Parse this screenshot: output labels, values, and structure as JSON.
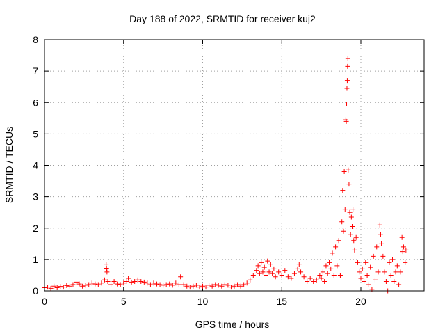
{
  "chart_data": {
    "type": "scatter",
    "title": "Day 188 of 2022, SRMTID for receiver kuj2",
    "xlabel": "GPS time / hours",
    "ylabel": "SRMTID / TECUs",
    "xlim": [
      0,
      24
    ],
    "ylim": [
      0,
      8
    ],
    "xticks": [
      0,
      5,
      10,
      15,
      20
    ],
    "yticks": [
      0,
      1,
      2,
      3,
      4,
      5,
      6,
      7,
      8
    ],
    "grid": true,
    "marker": "+",
    "series": [
      {
        "name": "SRMTID",
        "color": "#ff0000",
        "points": [
          [
            0.0,
            0.1
          ],
          [
            0.2,
            0.12
          ],
          [
            0.4,
            0.08
          ],
          [
            0.6,
            0.15
          ],
          [
            0.8,
            0.1
          ],
          [
            1.0,
            0.14
          ],
          [
            1.2,
            0.12
          ],
          [
            1.4,
            0.17
          ],
          [
            1.6,
            0.15
          ],
          [
            1.8,
            0.2
          ],
          [
            2.0,
            0.28
          ],
          [
            2.2,
            0.22
          ],
          [
            2.4,
            0.15
          ],
          [
            2.6,
            0.18
          ],
          [
            2.8,
            0.2
          ],
          [
            3.0,
            0.25
          ],
          [
            3.2,
            0.22
          ],
          [
            3.4,
            0.2
          ],
          [
            3.6,
            0.25
          ],
          [
            3.8,
            0.35
          ],
          [
            3.9,
            0.85
          ],
          [
            3.92,
            0.72
          ],
          [
            3.95,
            0.6
          ],
          [
            4.0,
            0.3
          ],
          [
            4.2,
            0.2
          ],
          [
            4.4,
            0.3
          ],
          [
            4.6,
            0.22
          ],
          [
            4.8,
            0.2
          ],
          [
            5.0,
            0.25
          ],
          [
            5.2,
            0.3
          ],
          [
            5.3,
            0.4
          ],
          [
            5.5,
            0.28
          ],
          [
            5.7,
            0.3
          ],
          [
            5.9,
            0.35
          ],
          [
            6.1,
            0.3
          ],
          [
            6.3,
            0.28
          ],
          [
            6.5,
            0.25
          ],
          [
            6.7,
            0.2
          ],
          [
            6.9,
            0.25
          ],
          [
            7.1,
            0.22
          ],
          [
            7.3,
            0.2
          ],
          [
            7.5,
            0.18
          ],
          [
            7.7,
            0.2
          ],
          [
            7.9,
            0.22
          ],
          [
            8.1,
            0.18
          ],
          [
            8.3,
            0.25
          ],
          [
            8.5,
            0.2
          ],
          [
            8.6,
            0.45
          ],
          [
            8.8,
            0.2
          ],
          [
            9.0,
            0.15
          ],
          [
            9.2,
            0.12
          ],
          [
            9.4,
            0.15
          ],
          [
            9.6,
            0.18
          ],
          [
            9.8,
            0.12
          ],
          [
            10.0,
            0.15
          ],
          [
            10.2,
            0.12
          ],
          [
            10.4,
            0.18
          ],
          [
            10.6,
            0.15
          ],
          [
            10.8,
            0.2
          ],
          [
            11.0,
            0.18
          ],
          [
            11.2,
            0.15
          ],
          [
            11.4,
            0.2
          ],
          [
            11.6,
            0.18
          ],
          [
            11.8,
            0.12
          ],
          [
            12.0,
            0.15
          ],
          [
            12.2,
            0.2
          ],
          [
            12.4,
            0.15
          ],
          [
            12.6,
            0.2
          ],
          [
            12.8,
            0.25
          ],
          [
            13.0,
            0.35
          ],
          [
            13.2,
            0.5
          ],
          [
            13.4,
            0.65
          ],
          [
            13.5,
            0.8
          ],
          [
            13.6,
            0.55
          ],
          [
            13.7,
            0.9
          ],
          [
            13.8,
            0.6
          ],
          [
            13.9,
            0.75
          ],
          [
            14.0,
            0.5
          ],
          [
            14.1,
            0.95
          ],
          [
            14.2,
            0.6
          ],
          [
            14.3,
            0.85
          ],
          [
            14.4,
            0.55
          ],
          [
            14.5,
            0.7
          ],
          [
            14.6,
            0.45
          ],
          [
            14.8,
            0.6
          ],
          [
            15.0,
            0.5
          ],
          [
            15.2,
            0.65
          ],
          [
            15.4,
            0.45
          ],
          [
            15.6,
            0.4
          ],
          [
            15.8,
            0.55
          ],
          [
            16.0,
            0.7
          ],
          [
            16.1,
            0.85
          ],
          [
            16.2,
            0.6
          ],
          [
            16.4,
            0.45
          ],
          [
            16.6,
            0.3
          ],
          [
            16.8,
            0.4
          ],
          [
            17.0,
            0.3
          ],
          [
            17.2,
            0.35
          ],
          [
            17.4,
            0.5
          ],
          [
            17.5,
            0.4
          ],
          [
            17.6,
            0.6
          ],
          [
            17.7,
            0.3
          ],
          [
            17.8,
            0.8
          ],
          [
            17.9,
            0.55
          ],
          [
            18.0,
            0.9
          ],
          [
            18.1,
            0.7
          ],
          [
            18.2,
            1.2
          ],
          [
            18.3,
            0.5
          ],
          [
            18.4,
            1.4
          ],
          [
            18.5,
            0.8
          ],
          [
            18.6,
            1.6
          ],
          [
            18.7,
            0.5
          ],
          [
            18.8,
            2.2
          ],
          [
            18.85,
            3.2
          ],
          [
            18.9,
            1.9
          ],
          [
            18.95,
            3.8
          ],
          [
            19.0,
            2.6
          ],
          [
            19.05,
            5.45
          ],
          [
            19.08,
            5.4
          ],
          [
            19.1,
            5.95
          ],
          [
            19.12,
            6.45
          ],
          [
            19.14,
            6.7
          ],
          [
            19.16,
            7.15
          ],
          [
            19.18,
            7.4
          ],
          [
            19.2,
            3.85
          ],
          [
            19.25,
            3.4
          ],
          [
            19.3,
            2.5
          ],
          [
            19.35,
            1.8
          ],
          [
            19.4,
            2.35
          ],
          [
            19.45,
            2.05
          ],
          [
            19.5,
            2.6
          ],
          [
            19.55,
            1.6
          ],
          [
            19.6,
            1.3
          ],
          [
            19.7,
            1.7
          ],
          [
            19.8,
            0.9
          ],
          [
            19.9,
            0.6
          ],
          [
            20.0,
            0.4
          ],
          [
            20.1,
            0.7
          ],
          [
            20.2,
            0.3
          ],
          [
            20.3,
            0.9
          ],
          [
            20.4,
            0.5
          ],
          [
            20.5,
            0.2
          ],
          [
            20.6,
            0.75
          ],
          [
            20.7,
            0.05
          ],
          [
            20.8,
            1.1
          ],
          [
            20.9,
            0.35
          ],
          [
            21.0,
            1.4
          ],
          [
            21.1,
            0.6
          ],
          [
            21.2,
            2.1
          ],
          [
            21.25,
            1.8
          ],
          [
            21.3,
            1.5
          ],
          [
            21.4,
            1.1
          ],
          [
            21.5,
            0.6
          ],
          [
            21.6,
            0.3
          ],
          [
            21.7,
            0.0
          ],
          [
            21.8,
            0.9
          ],
          [
            21.9,
            0.5
          ],
          [
            22.0,
            1.0
          ],
          [
            22.1,
            0.3
          ],
          [
            22.2,
            0.6
          ],
          [
            22.3,
            0.8
          ],
          [
            22.4,
            0.2
          ],
          [
            22.5,
            0.6
          ],
          [
            22.6,
            1.7
          ],
          [
            22.65,
            1.25
          ],
          [
            22.7,
            1.4
          ],
          [
            22.8,
            0.9
          ],
          [
            22.85,
            1.3
          ]
        ]
      }
    ]
  }
}
